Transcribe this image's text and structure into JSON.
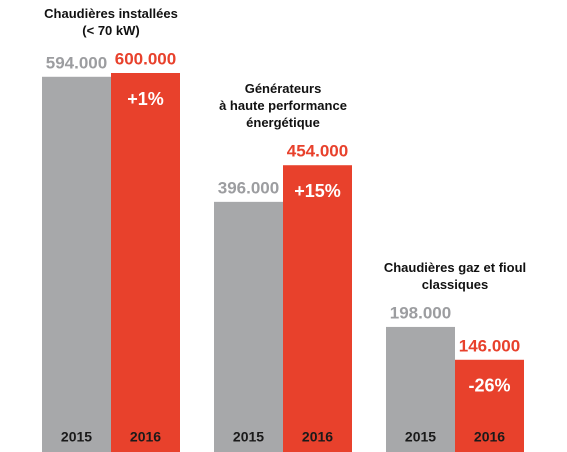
{
  "chart_data": {
    "type": "bar",
    "categories": [
      "Chaudières installées\n(< 70 kW)",
      "Générateurs\nà haute performance\nénergétique",
      "Chaudières gaz et fioul\nclassiques"
    ],
    "series": [
      {
        "name": "2015",
        "color": "#a7a8aa",
        "label_color": "#9c9da0",
        "values": [
          594000,
          396000,
          198000
        ],
        "value_labels": [
          "594.000",
          "396.000",
          "198.000"
        ]
      },
      {
        "name": "2016",
        "color": "#e8412c",
        "label_color": "#e8412c",
        "values": [
          600000,
          454000,
          146000
        ],
        "value_labels": [
          "600.000",
          "454.000",
          "146.000"
        ],
        "change_labels": [
          "+1%",
          "+15%",
          "-26%"
        ]
      }
    ]
  }
}
